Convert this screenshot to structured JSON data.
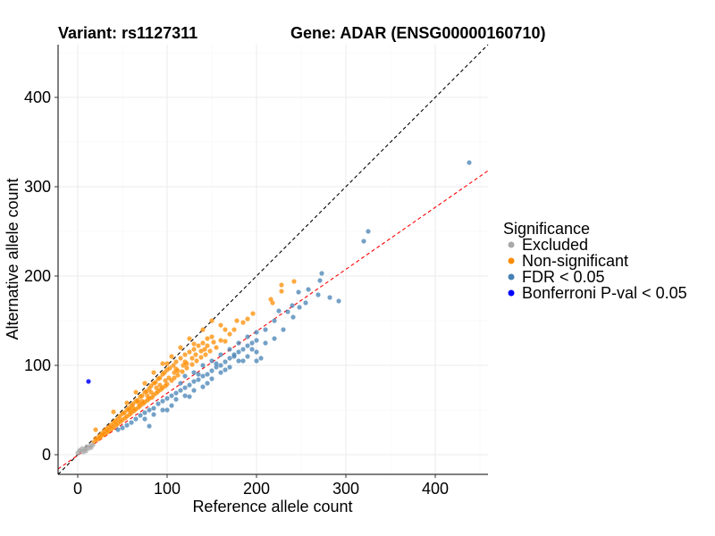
{
  "chart_data": {
    "type": "scatter",
    "title_left": "Variant: rs1127311",
    "title_right": "Gene: ADAR (ENSG00000160710)",
    "xlabel": "Reference allele count",
    "ylabel": "Alternative allele count",
    "xlim": [
      -22,
      459
    ],
    "ylim": [
      -22,
      459
    ],
    "xticks": [
      "0",
      "100",
      "200",
      "300",
      "400"
    ],
    "yticks": [
      "0",
      "100",
      "200",
      "300",
      "400"
    ],
    "grid": true,
    "legend": {
      "title": "Significance",
      "placement": "right",
      "entries": [
        "Excluded",
        "Non-significant",
        "FDR < 0.05",
        "Bonferroni P-val < 0.05"
      ]
    },
    "lines": [
      {
        "name": "identity",
        "slope": 1,
        "intercept": 0,
        "color": "#000000",
        "style": "dashed"
      },
      {
        "name": "fit",
        "slope": 0.694,
        "intercept": -0.7,
        "color": "#FF0000",
        "style": "dashed"
      }
    ],
    "series": [
      {
        "name": "Excluded",
        "color": "#A9A9A9",
        "points": [
          [
            0,
            2
          ],
          [
            3,
            4
          ],
          [
            5,
            7
          ],
          [
            8,
            6
          ],
          [
            10,
            9
          ],
          [
            12,
            7
          ],
          [
            14,
            10
          ],
          [
            15,
            8
          ],
          [
            6,
            3
          ],
          [
            2,
            5
          ],
          [
            9,
            4
          ],
          [
            17,
            11
          ]
        ]
      },
      {
        "name": "Non-significant",
        "color": "#FF8C00",
        "points": [
          [
            18,
            14
          ],
          [
            20,
            18
          ],
          [
            22,
            17
          ],
          [
            24,
            21
          ],
          [
            25,
            19
          ],
          [
            27,
            24
          ],
          [
            28,
            22
          ],
          [
            30,
            27
          ],
          [
            30,
            23
          ],
          [
            32,
            29
          ],
          [
            33,
            25
          ],
          [
            35,
            31
          ],
          [
            35,
            27
          ],
          [
            37,
            33
          ],
          [
            38,
            29
          ],
          [
            40,
            36
          ],
          [
            40,
            31
          ],
          [
            42,
            38
          ],
          [
            43,
            33
          ],
          [
            45,
            40
          ],
          [
            45,
            35
          ],
          [
            47,
            43
          ],
          [
            48,
            37
          ],
          [
            50,
            46
          ],
          [
            50,
            39
          ],
          [
            52,
            47
          ],
          [
            53,
            41
          ],
          [
            55,
            50
          ],
          [
            55,
            43
          ],
          [
            57,
            52
          ],
          [
            58,
            45
          ],
          [
            60,
            55
          ],
          [
            60,
            47
          ],
          [
            62,
            57
          ],
          [
            63,
            49
          ],
          [
            65,
            60
          ],
          [
            65,
            51
          ],
          [
            67,
            61
          ],
          [
            68,
            53
          ],
          [
            70,
            65
          ],
          [
            70,
            55
          ],
          [
            72,
            66
          ],
          [
            73,
            57
          ],
          [
            75,
            70
          ],
          [
            75,
            59
          ],
          [
            77,
            71
          ],
          [
            78,
            61
          ],
          [
            80,
            74
          ],
          [
            80,
            63
          ],
          [
            82,
            77
          ],
          [
            83,
            64
          ],
          [
            85,
            80
          ],
          [
            85,
            67
          ],
          [
            87,
            81
          ],
          [
            88,
            69
          ],
          [
            90,
            85
          ],
          [
            90,
            71
          ],
          [
            92,
            86
          ],
          [
            93,
            73
          ],
          [
            95,
            90
          ],
          [
            95,
            75
          ],
          [
            97,
            92
          ],
          [
            98,
            77
          ],
          [
            100,
            95
          ],
          [
            100,
            79
          ],
          [
            103,
            97
          ],
          [
            105,
            83
          ],
          [
            107,
            100
          ],
          [
            108,
            86
          ],
          [
            110,
            104
          ],
          [
            112,
            89
          ],
          [
            115,
            108
          ],
          [
            117,
            93
          ],
          [
            120,
            112
          ],
          [
            122,
            97
          ],
          [
            125,
            115
          ],
          [
            128,
            101
          ],
          [
            130,
            118
          ],
          [
            133,
            105
          ],
          [
            135,
            122
          ],
          [
            138,
            109
          ],
          [
            140,
            125
          ],
          [
            143,
            112
          ],
          [
            145,
            130
          ],
          [
            148,
            116
          ],
          [
            150,
            132
          ],
          [
            155,
            120
          ],
          [
            160,
            128
          ],
          [
            165,
            127
          ],
          [
            170,
            135
          ],
          [
            55,
            58
          ],
          [
            65,
            70
          ],
          [
            75,
            80
          ],
          [
            85,
            92
          ],
          [
            95,
            102
          ],
          [
            105,
            110
          ],
          [
            115,
            120
          ],
          [
            125,
            130
          ],
          [
            140,
            140
          ],
          [
            150,
            150
          ],
          [
            160,
            145
          ],
          [
            175,
            140
          ],
          [
            185,
            148
          ],
          [
            228,
            190
          ],
          [
            228,
            183
          ],
          [
            216,
            174
          ],
          [
            218,
            170
          ],
          [
            242,
            194
          ],
          [
            20,
            28
          ],
          [
            40,
            48
          ],
          [
            62,
            52
          ],
          [
            72,
            60
          ],
          [
            82,
            70
          ],
          [
            92,
            78
          ],
          [
            102,
            86
          ],
          [
            112,
            94
          ],
          [
            122,
            102
          ],
          [
            132,
            112
          ],
          [
            142,
            118
          ],
          [
            152,
            126
          ],
          [
            58,
            50
          ],
          [
            68,
            58
          ],
          [
            78,
            66
          ],
          [
            88,
            75
          ],
          [
            98,
            83
          ],
          [
            108,
            92
          ],
          [
            118,
            100
          ],
          [
            128,
            108
          ],
          [
            138,
            116
          ],
          [
            100,
            102
          ],
          [
            110,
            96
          ],
          [
            120,
            104
          ],
          [
            130,
            124
          ],
          [
            145,
            122
          ],
          [
            165,
            140
          ],
          [
            178,
            150
          ],
          [
            190,
            152
          ],
          [
            196,
            158
          ]
        ]
      },
      {
        "name": "FDR < 0.05",
        "color": "#4682B4",
        "points": [
          [
            45,
            28
          ],
          [
            50,
            30
          ],
          [
            55,
            33
          ],
          [
            60,
            36
          ],
          [
            65,
            40
          ],
          [
            70,
            44
          ],
          [
            75,
            47
          ],
          [
            80,
            50
          ],
          [
            85,
            52
          ],
          [
            90,
            57
          ],
          [
            95,
            60
          ],
          [
            100,
            63
          ],
          [
            105,
            66
          ],
          [
            110,
            69
          ],
          [
            115,
            72
          ],
          [
            120,
            75
          ],
          [
            125,
            78
          ],
          [
            130,
            82
          ],
          [
            135,
            84
          ],
          [
            140,
            88
          ],
          [
            145,
            90
          ],
          [
            150,
            94
          ],
          [
            155,
            98
          ],
          [
            160,
            100
          ],
          [
            165,
            104
          ],
          [
            170,
            108
          ],
          [
            175,
            112
          ],
          [
            180,
            115
          ],
          [
            185,
            118
          ],
          [
            190,
            122
          ],
          [
            195,
            125
          ],
          [
            200,
            128
          ],
          [
            110,
            62
          ],
          [
            120,
            66
          ],
          [
            130,
            72
          ],
          [
            140,
            76
          ],
          [
            150,
            85
          ],
          [
            160,
            92
          ],
          [
            170,
            98
          ],
          [
            180,
            105
          ],
          [
            190,
            110
          ],
          [
            200,
            115
          ],
          [
            210,
            125
          ],
          [
            220,
            130
          ],
          [
            230,
            140
          ],
          [
            95,
            50
          ],
          [
            105,
            55
          ],
          [
            85,
            45
          ],
          [
            75,
            40
          ],
          [
            120,
            88
          ],
          [
            130,
            92
          ],
          [
            140,
            100
          ],
          [
            150,
            105
          ],
          [
            160,
            112
          ],
          [
            170,
            118
          ],
          [
            180,
            125
          ],
          [
            190,
            132
          ],
          [
            200,
            137
          ],
          [
            210,
            140
          ],
          [
            220,
            150
          ],
          [
            235,
            160
          ],
          [
            248,
            165
          ],
          [
            255,
            170
          ],
          [
            225,
            161
          ],
          [
            240,
            167
          ],
          [
            241,
            154
          ],
          [
            247,
            182
          ],
          [
            258,
            185
          ],
          [
            269,
            179
          ],
          [
            282,
            176
          ],
          [
            292,
            172
          ],
          [
            271,
            195
          ],
          [
            273,
            203
          ],
          [
            320,
            239
          ],
          [
            325,
            250
          ],
          [
            438,
            327
          ],
          [
            80,
            32
          ],
          [
            100,
            50
          ],
          [
            125,
            65
          ],
          [
            200,
            105
          ],
          [
            185,
            105
          ],
          [
            115,
            80
          ],
          [
            135,
            90
          ],
          [
            155,
            102
          ],
          [
            175,
            110
          ],
          [
            195,
            118
          ],
          [
            165,
            95
          ],
          [
            145,
            80
          ],
          [
            205,
            108
          ]
        ]
      },
      {
        "name": "Bonferroni P-val < 0.05",
        "color": "#0000FF",
        "points": [
          [
            12,
            82
          ]
        ]
      }
    ]
  }
}
